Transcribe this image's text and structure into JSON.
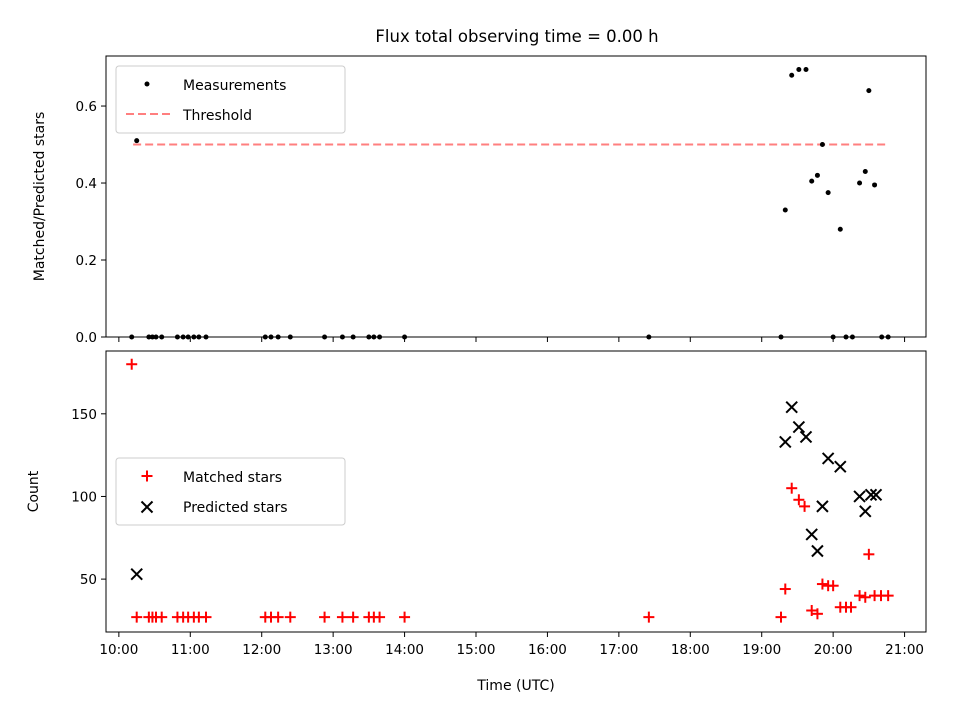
{
  "figure": {
    "title": "Flux total observing time = 0.00 h"
  },
  "chart_data": [
    {
      "type": "scatter",
      "panel": "top",
      "ylabel": "Matched/Predicted stars",
      "xlabel": "",
      "xlim": [
        9.82,
        21.3
      ],
      "ylim": [
        0,
        0.73
      ],
      "y_ticks": [
        0.0,
        0.2,
        0.4,
        0.6
      ],
      "y_tick_labels": [
        "0.0",
        "0.2",
        "0.4",
        "0.6"
      ],
      "legend_position": "upper left",
      "legend": [
        {
          "name": "Measurements",
          "marker": "dot",
          "color": "#000000"
        },
        {
          "name": "Threshold",
          "marker": "dashed-line",
          "color": "#ff7f7f"
        }
      ],
      "threshold": {
        "name": "Threshold",
        "y": 0.5,
        "x": [
          10.2,
          20.75
        ]
      },
      "series": [
        {
          "name": "Measurements",
          "points": [
            [
              10.18,
              0
            ],
            [
              10.25,
              0.51
            ],
            [
              10.42,
              0
            ],
            [
              10.47,
              0
            ],
            [
              10.52,
              0
            ],
            [
              10.6,
              0
            ],
            [
              10.82,
              0
            ],
            [
              10.9,
              0
            ],
            [
              10.97,
              0
            ],
            [
              11.05,
              0
            ],
            [
              11.12,
              0
            ],
            [
              11.22,
              0
            ],
            [
              12.05,
              0
            ],
            [
              12.13,
              0
            ],
            [
              12.23,
              0
            ],
            [
              12.4,
              0
            ],
            [
              12.88,
              0
            ],
            [
              13.13,
              0
            ],
            [
              13.28,
              0
            ],
            [
              13.5,
              0
            ],
            [
              13.57,
              0
            ],
            [
              13.65,
              0
            ],
            [
              14.0,
              0
            ],
            [
              17.42,
              0
            ],
            [
              19.27,
              0
            ],
            [
              19.33,
              0.33
            ],
            [
              19.42,
              0.68
            ],
            [
              19.52,
              0.695
            ],
            [
              19.62,
              0.695
            ],
            [
              19.7,
              0.405
            ],
            [
              19.78,
              0.42
            ],
            [
              19.85,
              0.5
            ],
            [
              19.93,
              0.375
            ],
            [
              20.0,
              0
            ],
            [
              20.1,
              0.28
            ],
            [
              20.18,
              0
            ],
            [
              20.27,
              0
            ],
            [
              20.37,
              0.4
            ],
            [
              20.45,
              0.43
            ],
            [
              20.5,
              0.64
            ],
            [
              20.58,
              0.395
            ],
            [
              20.68,
              0
            ],
            [
              20.77,
              0
            ]
          ]
        }
      ]
    },
    {
      "type": "scatter",
      "panel": "bottom",
      "xlabel": "Time (UTC)",
      "ylabel": "Count",
      "xlim": [
        9.82,
        21.3
      ],
      "ylim": [
        18,
        188
      ],
      "x_ticks": [
        10,
        11,
        12,
        13,
        14,
        15,
        16,
        17,
        18,
        19,
        20,
        21
      ],
      "x_tick_labels": [
        "10:00",
        "11:00",
        "12:00",
        "13:00",
        "14:00",
        "15:00",
        "16:00",
        "17:00",
        "18:00",
        "19:00",
        "20:00",
        "21:00"
      ],
      "y_ticks": [
        50,
        100,
        150
      ],
      "y_tick_labels": [
        "50",
        "100",
        "150"
      ],
      "legend_position": "center left",
      "legend": [
        {
          "name": "Matched stars",
          "marker": "plus",
          "color": "#ff0000"
        },
        {
          "name": "Predicted stars",
          "marker": "x",
          "color": "#000000"
        }
      ],
      "series": [
        {
          "name": "Matched stars",
          "marker": "plus",
          "color": "#ff0000",
          "points": [
            [
              10.18,
              180
            ],
            [
              10.25,
              27
            ],
            [
              10.42,
              27
            ],
            [
              10.47,
              27
            ],
            [
              10.52,
              27
            ],
            [
              10.6,
              27
            ],
            [
              10.82,
              27
            ],
            [
              10.9,
              27
            ],
            [
              10.97,
              27
            ],
            [
              11.05,
              27
            ],
            [
              11.12,
              27
            ],
            [
              11.22,
              27
            ],
            [
              12.05,
              27
            ],
            [
              12.13,
              27
            ],
            [
              12.23,
              27
            ],
            [
              12.4,
              27
            ],
            [
              12.88,
              27
            ],
            [
              13.13,
              27
            ],
            [
              13.28,
              27
            ],
            [
              13.5,
              27
            ],
            [
              13.57,
              27
            ],
            [
              13.65,
              27
            ],
            [
              14.0,
              27
            ],
            [
              17.42,
              27
            ],
            [
              19.27,
              27
            ],
            [
              19.33,
              44
            ],
            [
              19.42,
              105
            ],
            [
              19.52,
              98
            ],
            [
              19.6,
              94
            ],
            [
              19.7,
              31
            ],
            [
              19.78,
              29
            ],
            [
              19.85,
              47
            ],
            [
              19.93,
              46
            ],
            [
              20.0,
              46
            ],
            [
              20.1,
              33
            ],
            [
              20.18,
              33
            ],
            [
              20.25,
              33
            ],
            [
              20.37,
              40
            ],
            [
              20.45,
              39
            ],
            [
              20.5,
              65
            ],
            [
              20.58,
              40
            ],
            [
              20.67,
              40
            ],
            [
              20.77,
              40
            ]
          ]
        },
        {
          "name": "Predicted stars",
          "marker": "x",
          "color": "#000000",
          "points": [
            [
              10.25,
              53
            ],
            [
              19.33,
              133
            ],
            [
              19.42,
              154
            ],
            [
              19.52,
              142
            ],
            [
              19.62,
              136
            ],
            [
              19.7,
              77
            ],
            [
              19.78,
              67
            ],
            [
              19.85,
              94
            ],
            [
              19.93,
              123
            ],
            [
              20.1,
              118
            ],
            [
              20.37,
              100
            ],
            [
              20.45,
              91
            ],
            [
              20.53,
              101
            ],
            [
              20.6,
              101
            ]
          ]
        }
      ]
    }
  ]
}
